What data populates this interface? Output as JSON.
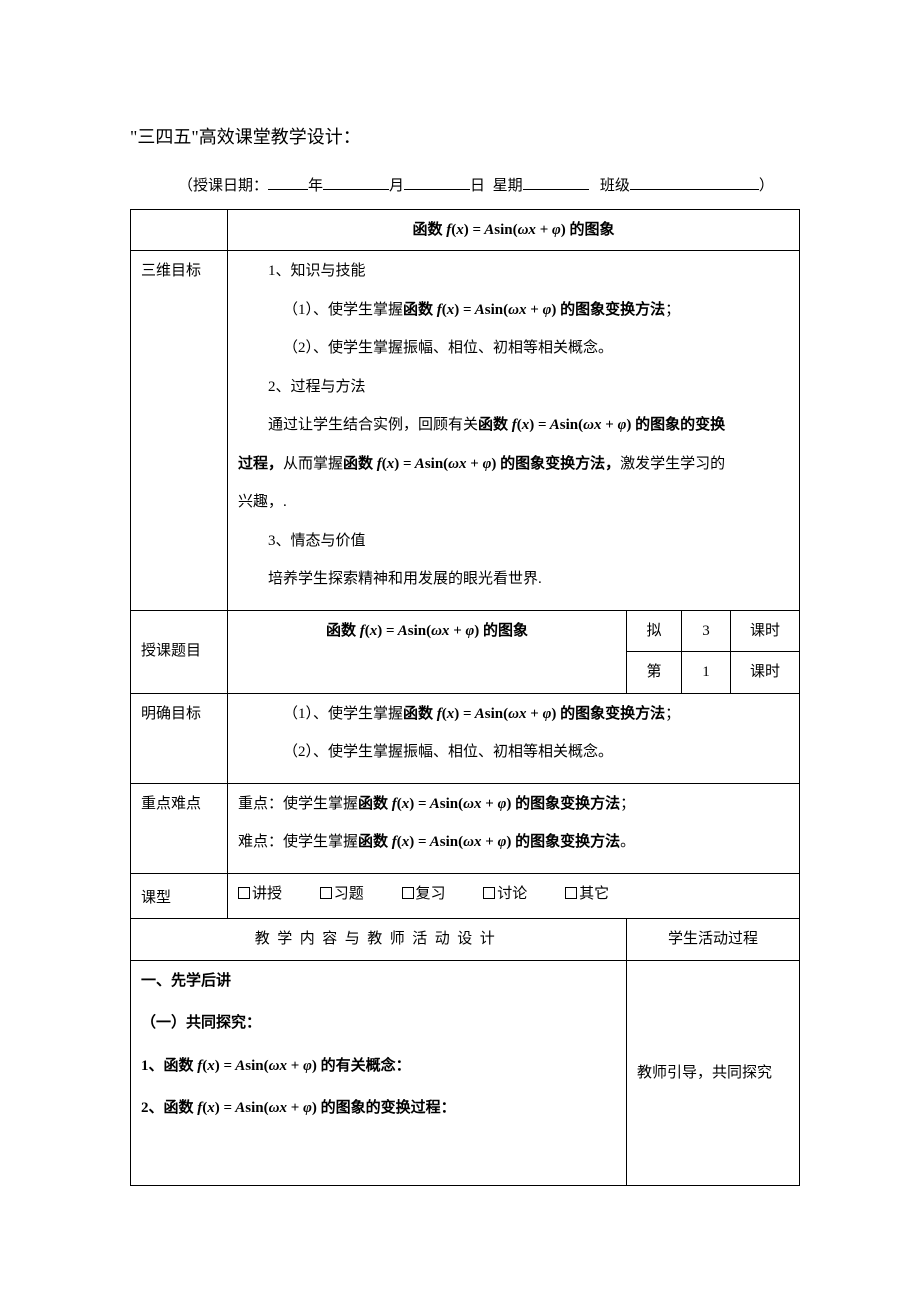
{
  "doc_title": "\"三四五\"高效课堂教学设计：",
  "date_line": {
    "prefix": "（授课日期：",
    "year_label": "年",
    "month_label": "月",
    "day_label": "日",
    "weekday_label": "星期",
    "class_label": "班级",
    "suffix": "）"
  },
  "formula_html": "<span class=\"formula\">f<span class=\"rm\">(</span>x<span class=\"rm\">)</span> <span class=\"rm\">=</span> A<span class=\"rm\">sin(</span>ωx <span class=\"rm\">+</span> φ<span class=\"rm\">)</span></span>",
  "header_row": {
    "prefix": "函数 ",
    "suffix": " 的图象"
  },
  "rows": {
    "sanwei": {
      "label": "三维目标",
      "p1": "1、知识与技能",
      "p2_pre": "（1）、使学生掌握",
      "p2_b_pre": "函数 ",
      "p2_b_suf": " 的图象变换方法",
      "p2_tail": "；",
      "p3": "（2）、使学生掌握振幅、相位、初相等相关概念。",
      "p4": "2、过程与方法",
      "p5_pre": "通过让学生结合实例，回顾有关",
      "p5_b_pre": "函数 ",
      "p5_b_suf": " 的图象的变换",
      "p6_b": "过程，",
      "p6_mid_pre": "从而掌握",
      "p6_mid_b_pre": "函数 ",
      "p6_mid_b_suf": " 的图象变换方法，",
      "p6_tail": "激发学生学习的",
      "p7": "兴趣，.",
      "p8": "3、情态与价值",
      "p9": "培养学生探索精神和用发展的眼光看世界."
    },
    "shouke": {
      "label": "授课题目",
      "mid_pre": "函数 ",
      "mid_suf": " 的图象",
      "ni": "拟",
      "ni_n": "3",
      "ni_unit": "课时",
      "di": "第",
      "di_n": "1",
      "di_unit": "课时"
    },
    "mingque": {
      "label": "明确目标",
      "p1_pre": "（1）、使学生掌握",
      "p1_b_pre": "函数 ",
      "p1_b_suf": " 的图象变换方法",
      "p1_tail": "；",
      "p2": "（2）、使学生掌握振幅、相位、初相等相关概念。"
    },
    "zdnd": {
      "label": "重点难点",
      "p1_pre": "重点：使学生掌握",
      "p1_b_pre": "函数 ",
      "p1_b_suf": " 的图象变换方法",
      "p1_tail": "；",
      "p2_pre": "难点：使学生掌握",
      "p2_b_pre": "函数 ",
      "p2_b_suf": " 的图象变换方法",
      "p2_tail": "。"
    },
    "ketype": {
      "label": "课型",
      "opts": [
        "讲授",
        "习题",
        "复习",
        "讨论",
        "其它"
      ]
    },
    "design": {
      "left": "教学内容与教师活动设计",
      "right": "学生活动过程"
    },
    "body": {
      "h1": "一、先学后讲",
      "h2": "（一）共同探究：",
      "l1_pre": "1、",
      "l1_b_pre": "函数 ",
      "l1_b_suf": " 的有关概念：",
      "l2_pre": "2、",
      "l2_b_pre": "函数 ",
      "l2_b_suf": " 的图象的变换过程：",
      "right": "教师引导，共同探究"
    }
  }
}
